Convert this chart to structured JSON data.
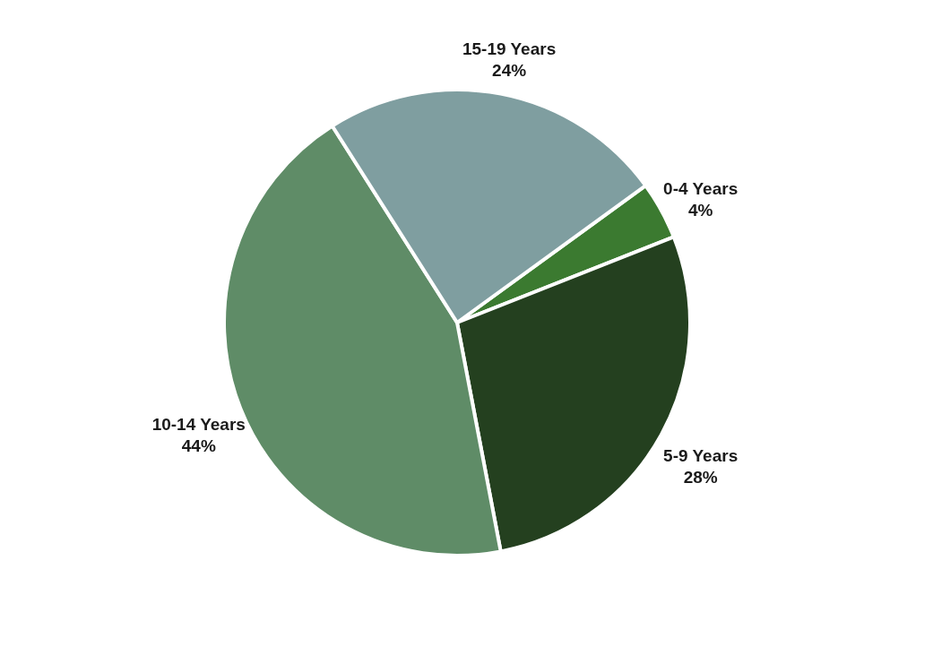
{
  "chart_data": {
    "type": "pie",
    "categories": [
      "0-4 Years",
      "5-9 Years",
      "10-14 Years",
      "15-19 Years"
    ],
    "values": [
      4,
      28,
      44,
      24
    ],
    "value_labels": [
      "4%",
      "28%",
      "44%",
      "24%"
    ],
    "colors": [
      "#3b7a30",
      "#24401f",
      "#5f8c67",
      "#7f9ea0"
    ]
  }
}
